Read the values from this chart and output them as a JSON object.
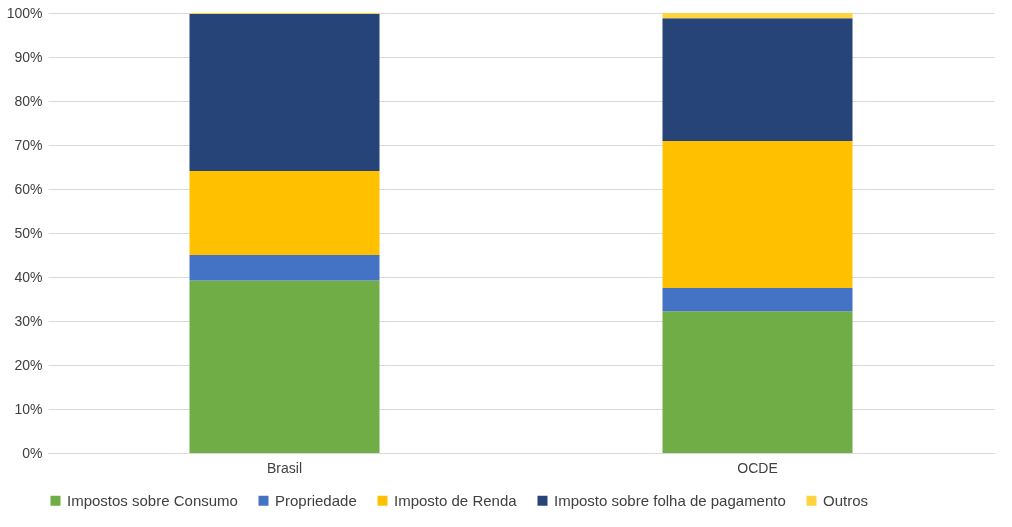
{
  "chart_data": {
    "type": "bar",
    "stacked": true,
    "categories": [
      "Brasil",
      "OCDE"
    ],
    "series": [
      {
        "name": "Impostos sobre Consumo",
        "color": "#70ad47",
        "values": [
          39.2,
          32.2
        ]
      },
      {
        "name": "Propriedade",
        "color": "#4472c4",
        "values": [
          5.8,
          5.3
        ]
      },
      {
        "name": "Imposto de Renda",
        "color": "#ffc000",
        "values": [
          19.1,
          33.4
        ]
      },
      {
        "name": "Imposto sobre folha de pagamento",
        "color": "#264478",
        "values": [
          35.7,
          27.9
        ]
      },
      {
        "name": "Outros",
        "color": "#ffd23f",
        "values": [
          0.2,
          1.2
        ]
      }
    ],
    "ylim": [
      0,
      100
    ],
    "yticks": [
      {
        "value": 0,
        "label": "0%"
      },
      {
        "value": 10,
        "label": "10%"
      },
      {
        "value": 20,
        "label": "20%"
      },
      {
        "value": 30,
        "label": "30%"
      },
      {
        "value": 40,
        "label": "40%"
      },
      {
        "value": 50,
        "label": "50%"
      },
      {
        "value": 60,
        "label": "60%"
      },
      {
        "value": 70,
        "label": "70%"
      },
      {
        "value": 80,
        "label": "80%"
      },
      {
        "value": 90,
        "label": "90%"
      },
      {
        "value": 100,
        "label": "100%"
      }
    ],
    "grid": "y",
    "legend": "bottom"
  }
}
